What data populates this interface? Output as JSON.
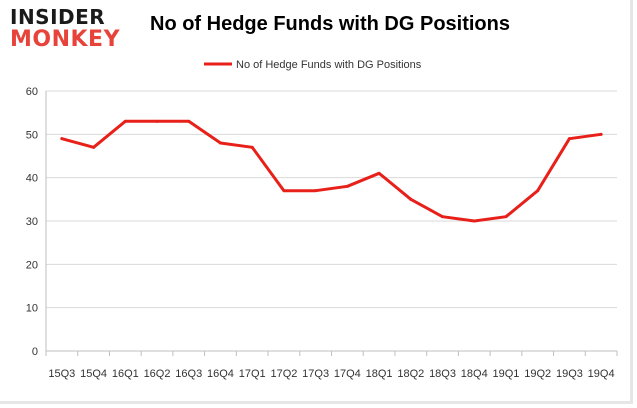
{
  "logo": {
    "line1": "INSIDER",
    "line2": "MONKEY",
    "colors": {
      "line1": "#1a1a1a",
      "line2": "#e8433b"
    }
  },
  "chart_data": {
    "type": "line",
    "title": "No of Hedge Funds with DG Positions",
    "xlabel": "",
    "ylabel": "",
    "categories": [
      "15Q3",
      "15Q4",
      "16Q1",
      "16Q2",
      "16Q3",
      "16Q4",
      "17Q1",
      "17Q2",
      "17Q3",
      "17Q4",
      "18Q1",
      "18Q2",
      "18Q3",
      "18Q4",
      "19Q1",
      "19Q2",
      "19Q3",
      "19Q4"
    ],
    "series": [
      {
        "name": "No of Hedge Funds with DG Positions",
        "color": "#e8201a",
        "values": [
          49,
          47,
          53,
          53,
          53,
          48,
          47,
          37,
          37,
          38,
          41,
          35,
          31,
          30,
          31,
          37,
          49,
          50
        ]
      }
    ],
    "ylim": [
      0,
      60
    ],
    "yticks": [
      0,
      10,
      20,
      30,
      40,
      50,
      60
    ],
    "grid": {
      "y": true,
      "x": false,
      "color": "#d9d9d9"
    },
    "legend": "top-center"
  }
}
